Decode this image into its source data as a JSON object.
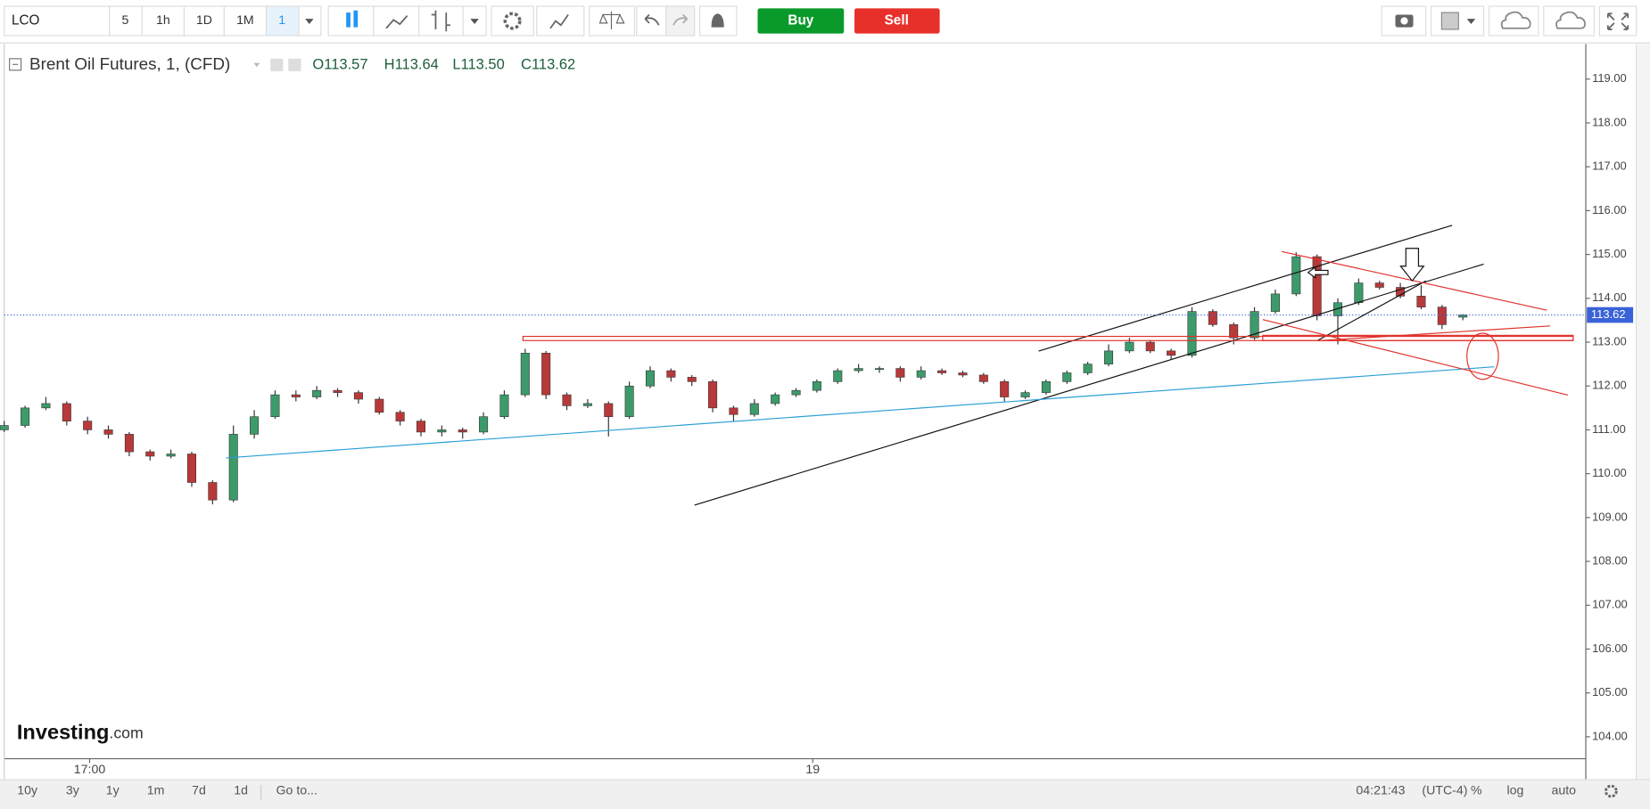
{
  "toolbar": {
    "symbol": "LCO",
    "intervals": [
      "5",
      "1h",
      "1D",
      "1M",
      "1"
    ],
    "buy": "Buy",
    "sell": "Sell"
  },
  "legend": {
    "title": "Brent Oil Futures, 1, (CFD)",
    "open": "O113.57",
    "high": "H113.64",
    "low": "L113.50",
    "close": "C113.62"
  },
  "logo": {
    "brand": "Investing",
    "suffix": ".com"
  },
  "footer": {
    "ranges": [
      "10y",
      "3y",
      "1y",
      "1m",
      "7d",
      "1d"
    ],
    "goto": "Go to...",
    "time": "04:21:43",
    "timezone": "(UTC-4)",
    "percent": "%",
    "log": "log",
    "auto": "auto"
  },
  "chart_data": {
    "type": "candlestick",
    "up_color": "#3d9a6b",
    "down_color": "#b8393a",
    "grid": false,
    "xlim": [
      0,
      75.9
    ],
    "xticks": [
      {
        "value": 4.1,
        "label": "17:00"
      },
      {
        "value": 38.8,
        "label": "19"
      }
    ],
    "ylim": [
      103.5,
      119.8
    ],
    "yticks": [
      {
        "value": 104,
        "label": "104.00"
      },
      {
        "value": 105,
        "label": "105.00"
      },
      {
        "value": 106,
        "label": "106.00"
      },
      {
        "value": 107,
        "label": "107.00"
      },
      {
        "value": 108,
        "label": "108.00"
      },
      {
        "value": 109,
        "label": "109.00"
      },
      {
        "value": 110,
        "label": "110.00"
      },
      {
        "value": 111,
        "label": "111.00"
      },
      {
        "value": 112,
        "label": "112.00"
      },
      {
        "value": 113,
        "label": "113.00"
      },
      {
        "value": 114,
        "label": "114.00"
      },
      {
        "value": 115,
        "label": "115.00"
      },
      {
        "value": 116,
        "label": "116.00"
      },
      {
        "value": 117,
        "label": "117.00"
      },
      {
        "value": 118,
        "label": "118.00"
      },
      {
        "value": 119,
        "label": "119.00"
      }
    ],
    "open": [
      111.0,
      111.1,
      111.5,
      111.6,
      111.2,
      111.0,
      110.9,
      110.5,
      110.4,
      110.45,
      109.8,
      109.4,
      110.9,
      111.3,
      111.8,
      111.75,
      111.9,
      111.85,
      111.7,
      111.4,
      111.2,
      110.95,
      111.0,
      110.95,
      111.3,
      111.8,
      112.75,
      111.8,
      111.55,
      111.6,
      111.3,
      112.0,
      112.35,
      112.2,
      112.1,
      111.5,
      111.35,
      111.6,
      111.8,
      111.9,
      112.1,
      112.35,
      112.4,
      112.4,
      112.2,
      112.35,
      112.3,
      112.25,
      112.1,
      111.75,
      111.85,
      112.1,
      112.3,
      112.5,
      112.8,
      113.0,
      112.8,
      112.7,
      113.7,
      113.4,
      113.1,
      113.7,
      114.1,
      114.95,
      113.6,
      113.9,
      114.35,
      114.25,
      114.05,
      113.8,
      113.57
    ],
    "high": [
      111.2,
      111.55,
      111.75,
      111.65,
      111.3,
      111.1,
      110.95,
      110.55,
      110.55,
      110.5,
      109.85,
      111.1,
      111.45,
      111.9,
      111.9,
      112.0,
      111.95,
      111.9,
      111.75,
      111.45,
      111.25,
      111.1,
      111.05,
      111.4,
      111.9,
      112.85,
      112.8,
      111.85,
      111.7,
      111.65,
      112.1,
      112.45,
      112.4,
      112.25,
      112.15,
      111.55,
      111.7,
      111.85,
      111.95,
      112.15,
      112.4,
      112.5,
      112.45,
      112.45,
      112.45,
      112.4,
      112.35,
      112.3,
      112.15,
      111.9,
      112.15,
      112.35,
      112.55,
      112.95,
      113.1,
      113.05,
      112.85,
      113.8,
      113.75,
      113.45,
      113.8,
      114.2,
      115.05,
      115.0,
      114.0,
      114.45,
      114.4,
      114.35,
      114.3,
      113.85,
      113.64
    ],
    "low": [
      110.95,
      111.05,
      111.45,
      111.1,
      110.9,
      110.8,
      110.4,
      110.3,
      110.35,
      109.7,
      109.3,
      109.35,
      110.8,
      111.25,
      111.65,
      111.7,
      111.75,
      111.6,
      111.35,
      111.1,
      110.85,
      110.85,
      110.8,
      110.9,
      111.25,
      111.75,
      111.7,
      111.45,
      111.5,
      110.85,
      111.25,
      111.95,
      112.1,
      112.0,
      111.4,
      111.2,
      111.3,
      111.55,
      111.75,
      111.85,
      112.05,
      112.3,
      112.3,
      112.1,
      112.15,
      112.25,
      112.2,
      112.05,
      111.65,
      111.7,
      111.8,
      112.05,
      112.25,
      112.45,
      112.75,
      112.75,
      112.6,
      112.65,
      113.35,
      112.95,
      113.05,
      113.65,
      114.05,
      113.5,
      112.95,
      113.85,
      114.2,
      114.0,
      113.75,
      113.3,
      113.5
    ],
    "close": [
      111.1,
      111.5,
      111.6,
      111.2,
      111.0,
      110.9,
      110.5,
      110.4,
      110.45,
      109.8,
      109.4,
      110.9,
      111.3,
      111.8,
      111.75,
      111.9,
      111.85,
      111.7,
      111.4,
      111.2,
      110.95,
      111.0,
      110.95,
      111.3,
      111.8,
      112.75,
      111.8,
      111.55,
      111.6,
      111.3,
      112.0,
      112.35,
      112.2,
      112.1,
      111.5,
      111.35,
      111.6,
      111.8,
      111.9,
      112.1,
      112.35,
      112.4,
      112.4,
      112.2,
      112.35,
      112.3,
      112.25,
      112.1,
      111.75,
      111.85,
      112.1,
      112.3,
      112.5,
      112.8,
      113.0,
      112.8,
      112.7,
      113.7,
      113.4,
      113.1,
      113.7,
      114.1,
      114.95,
      113.6,
      113.9,
      114.35,
      114.25,
      114.05,
      113.8,
      113.4,
      113.62
    ]
  }
}
